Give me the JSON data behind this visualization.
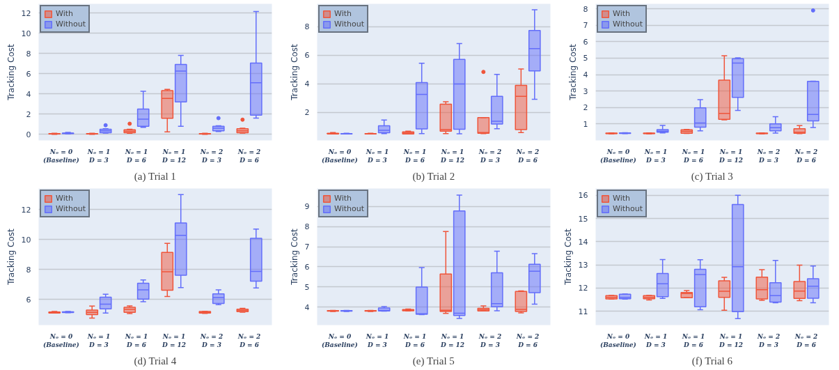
{
  "chart_data": [
    {
      "type": "box",
      "title": "(a) Trial 1",
      "ylabel": "Tracking Cost",
      "categories": [
        "Nₒ = 0\n(Baseline)",
        "Nₒ = 1\nD = 3",
        "Nₒ = 1\nD = 6",
        "Nₒ = 1\nD = 12",
        "Nₒ = 2\nD = 3",
        "Nₒ = 2\nD = 6"
      ],
      "ylim": [
        -0.6,
        12.9
      ],
      "yticks": [
        0,
        2,
        4,
        6,
        8,
        10,
        12
      ],
      "grid": "y",
      "legend": "top left",
      "series": [
        {
          "name": "With",
          "color": "#ef553b",
          "boxes": [
            {
              "low": 0,
              "q1": 0.03,
              "median": 0.05,
              "q3": 0.08,
              "high": 0.1
            },
            {
              "low": 0,
              "q1": 0.03,
              "median": 0.05,
              "q3": 0.08,
              "high": 0.1
            },
            {
              "low": 0.1,
              "q1": 0.15,
              "median": 0.3,
              "q3": 0.45,
              "high": 0.5,
              "outliers": [
                1.05
              ]
            },
            {
              "low": 0.25,
              "q1": 1.58,
              "median": 3.55,
              "q3": 4.33,
              "high": 4.45
            },
            {
              "low": 0,
              "q1": 0.03,
              "median": 0.05,
              "q3": 0.08,
              "high": 0.1
            },
            {
              "low": 0.12,
              "q1": 0.15,
              "median": 0.35,
              "q3": 0.55,
              "high": 0.6,
              "outliers": [
                1.45
              ]
            }
          ]
        },
        {
          "name": "Without",
          "color": "#636efa",
          "boxes": [
            {
              "low": 0.05,
              "q1": 0.07,
              "median": 0.1,
              "q3": 0.13,
              "high": 0.2
            },
            {
              "low": 0.12,
              "q1": 0.15,
              "median": 0.35,
              "q3": 0.5,
              "high": 0.55,
              "outliers": [
                0.9
              ]
            },
            {
              "low": 0.7,
              "q1": 0.8,
              "median": 1.5,
              "q3": 2.5,
              "high": 4.25
            },
            {
              "low": 0.8,
              "q1": 3.2,
              "median": 6.25,
              "q3": 6.9,
              "high": 7.8
            },
            {
              "low": 0.27,
              "q1": 0.35,
              "median": 0.6,
              "q3": 0.8,
              "high": 0.85,
              "outliers": [
                1.6
              ]
            },
            {
              "low": 1.6,
              "q1": 1.9,
              "median": 5.1,
              "q3": 7.05,
              "high": 12.15
            }
          ]
        }
      ]
    },
    {
      "type": "box",
      "title": "(b) Trial 2",
      "ylabel": "Tracking Cost",
      "categories": [
        "Nₒ = 0\n(Baseline)",
        "Nₒ = 1\nD = 3",
        "Nₒ = 1\nD = 6",
        "Nₒ = 1\nD = 12",
        "Nₒ = 2\nD = 3",
        "Nₒ = 2\nD = 6"
      ],
      "ylim": [
        0.05,
        9.6
      ],
      "yticks": [
        2,
        4,
        6,
        8
      ],
      "grid": "y",
      "legend": "top left",
      "series": [
        {
          "name": "With",
          "color": "#ef553b",
          "boxes": [
            {
              "low": 0.5,
              "q1": 0.5,
              "median": 0.52,
              "q3": 0.55,
              "high": 0.6
            },
            {
              "low": 0.5,
              "q1": 0.5,
              "median": 0.52,
              "q3": 0.53,
              "high": 0.55
            },
            {
              "low": 0.5,
              "q1": 0.5,
              "median": 0.56,
              "q3": 0.65,
              "high": 0.7
            },
            {
              "low": 0.53,
              "q1": 0.7,
              "median": 0.8,
              "q3": 2.58,
              "high": 2.76
            },
            {
              "low": 0.53,
              "q1": 0.55,
              "median": 0.6,
              "q3": 1.64,
              "high": 1.65,
              "outliers": [
                4.84
              ]
            },
            {
              "low": 0.6,
              "q1": 0.8,
              "median": 3.13,
              "q3": 3.9,
              "high": 5.05
            }
          ]
        },
        {
          "name": "Without",
          "color": "#636efa",
          "boxes": [
            {
              "low": 0.5,
              "q1": 0.5,
              "median": 0.52,
              "q3": 0.53,
              "high": 0.55
            },
            {
              "low": 0.53,
              "q1": 0.58,
              "median": 0.76,
              "q3": 1.07,
              "high": 1.48
            },
            {
              "low": 0.53,
              "q1": 0.85,
              "median": 3.27,
              "q3": 4.1,
              "high": 5.45
            },
            {
              "low": 0.51,
              "q1": 0.83,
              "median": 4.0,
              "q3": 5.72,
              "high": 6.82
            },
            {
              "low": 0.87,
              "q1": 1.19,
              "median": 1.39,
              "q3": 3.13,
              "high": 4.67
            },
            {
              "low": 2.93,
              "q1": 4.91,
              "median": 6.47,
              "q3": 7.74,
              "high": 9.19
            }
          ]
        }
      ]
    },
    {
      "type": "box",
      "title": "(c) Trial 3",
      "ylabel": "Tracking Cost",
      "categories": [
        "Nₒ = 0\n(Baseline)",
        "Nₒ = 1\nD = 3",
        "Nₒ = 1\nD = 6",
        "Nₒ = 1\nD = 12",
        "Nₒ = 2\nD = 3",
        "Nₒ = 2\nD = 6"
      ],
      "ylim": [
        0,
        8.3
      ],
      "yticks": [
        1,
        2,
        3,
        4,
        5,
        6,
        7,
        8
      ],
      "grid": "y",
      "legend": "top left",
      "series": [
        {
          "name": "With",
          "color": "#ef553b",
          "boxes": [
            {
              "low": 0.4,
              "q1": 0.41,
              "median": 0.42,
              "q3": 0.44,
              "high": 0.46
            },
            {
              "low": 0.4,
              "q1": 0.41,
              "median": 0.42,
              "q3": 0.44,
              "high": 0.46
            },
            {
              "low": 0.42,
              "q1": 0.43,
              "median": 0.55,
              "q3": 0.65,
              "high": 0.67
            },
            {
              "low": 1.25,
              "q1": 1.28,
              "median": 1.64,
              "q3": 3.66,
              "high": 5.15
            },
            {
              "low": 0.4,
              "q1": 0.41,
              "median": 0.42,
              "q3": 0.44,
              "high": 0.46
            },
            {
              "low": 0.41,
              "q1": 0.43,
              "median": 0.5,
              "q3": 0.71,
              "high": 0.9
            }
          ]
        },
        {
          "name": "Without",
          "color": "#636efa",
          "boxes": [
            {
              "low": 0.41,
              "q1": 0.42,
              "median": 0.43,
              "q3": 0.45,
              "high": 0.47
            },
            {
              "low": 0.46,
              "q1": 0.5,
              "median": 0.56,
              "q3": 0.66,
              "high": 0.91
            },
            {
              "low": 0.58,
              "q1": 0.8,
              "median": 1.06,
              "q3": 1.98,
              "high": 2.48
            },
            {
              "low": 1.82,
              "q1": 2.62,
              "median": 4.7,
              "q3": 4.96,
              "high": 5.02
            },
            {
              "low": 0.44,
              "q1": 0.58,
              "median": 0.77,
              "q3": 1.01,
              "high": 1.44
            },
            {
              "low": 0.78,
              "q1": 1.19,
              "median": 1.58,
              "q3": 3.59,
              "high": 3.6,
              "outliers": [
                7.9
              ]
            }
          ]
        }
      ]
    },
    {
      "type": "box",
      "title": "(d) Trial 4",
      "ylabel": "Tracking Cost",
      "categories": [
        "Nₒ = 0\n(Baseline)",
        "Nₒ = 1\nD = 3",
        "Nₒ = 1\nD = 6",
        "Nₒ = 1\nD = 12",
        "Nₒ = 2\nD = 3",
        "Nₒ = 2\nD = 6"
      ],
      "ylim": [
        4.3,
        13.4
      ],
      "yticks": [
        6,
        8,
        10,
        12
      ],
      "grid": "y",
      "legend": "top left",
      "series": [
        {
          "name": "With",
          "color": "#ef553b",
          "boxes": [
            {
              "low": 5.1,
              "q1": 5.1,
              "median": 5.13,
              "q3": 5.17,
              "high": 5.2
            },
            {
              "low": 4.77,
              "q1": 5.0,
              "median": 5.15,
              "q3": 5.3,
              "high": 5.56
            },
            {
              "low": 5.07,
              "q1": 5.15,
              "median": 5.35,
              "q3": 5.48,
              "high": 5.58
            },
            {
              "low": 6.2,
              "q1": 6.62,
              "median": 7.85,
              "q3": 9.14,
              "high": 9.74
            },
            {
              "low": 5.08,
              "q1": 5.1,
              "median": 5.13,
              "q3": 5.2,
              "high": 5.22
            },
            {
              "low": 5.16,
              "q1": 5.19,
              "median": 5.27,
              "q3": 5.36,
              "high": 5.42
            }
          ]
        },
        {
          "name": "Without",
          "color": "#636efa",
          "boxes": [
            {
              "low": 5.12,
              "q1": 5.14,
              "median": 5.16,
              "q3": 5.18,
              "high": 5.2
            },
            {
              "low": 5.1,
              "q1": 5.38,
              "median": 5.69,
              "q3": 6.16,
              "high": 6.36
            },
            {
              "low": 5.85,
              "q1": 6.03,
              "median": 6.65,
              "q3": 7.08,
              "high": 7.31
            },
            {
              "low": 6.8,
              "q1": 7.62,
              "median": 10.28,
              "q3": 11.1,
              "high": 12.99
            },
            {
              "low": 5.66,
              "q1": 5.74,
              "median": 6.13,
              "q3": 6.38,
              "high": 6.64
            },
            {
              "low": 6.77,
              "q1": 7.23,
              "median": 7.88,
              "q3": 10.08,
              "high": 10.69
            }
          ]
        }
      ]
    },
    {
      "type": "box",
      "title": "(e) Trial 5",
      "ylabel": "Tracking Cost",
      "categories": [
        "Nₒ = 0\n(Baseline)",
        "Nₒ = 1\nD = 3",
        "Nₒ = 1\nD = 6",
        "Nₒ = 1\nD = 12",
        "Nₒ = 2\nD = 3",
        "Nₒ = 2\nD = 6"
      ],
      "ylim": [
        3.1,
        9.9
      ],
      "yticks": [
        4,
        5,
        6,
        7,
        8,
        9
      ],
      "grid": "y",
      "legend": "top left",
      "series": [
        {
          "name": "With",
          "color": "#ef553b",
          "boxes": [
            {
              "low": 3.78,
              "q1": 3.79,
              "median": 3.8,
              "q3": 3.82,
              "high": 3.83
            },
            {
              "low": 3.78,
              "q1": 3.79,
              "median": 3.8,
              "q3": 3.82,
              "high": 3.83
            },
            {
              "low": 3.8,
              "q1": 3.81,
              "median": 3.84,
              "q3": 3.87,
              "high": 3.9
            },
            {
              "low": 3.68,
              "q1": 3.78,
              "median": 3.84,
              "q3": 5.64,
              "high": 7.76
            },
            {
              "low": 3.8,
              "q1": 3.8,
              "median": 3.86,
              "q3": 3.93,
              "high": 4.05
            },
            {
              "low": 3.71,
              "q1": 3.78,
              "median": 3.88,
              "q3": 4.77,
              "high": 4.8
            }
          ]
        },
        {
          "name": "Without",
          "color": "#636efa",
          "boxes": [
            {
              "low": 3.78,
              "q1": 3.79,
              "median": 3.8,
              "q3": 3.82,
              "high": 3.83
            },
            {
              "low": 3.79,
              "q1": 3.8,
              "median": 3.83,
              "q3": 3.95,
              "high": 4.02
            },
            {
              "low": 3.62,
              "q1": 3.64,
              "median": 3.66,
              "q3": 4.99,
              "high": 5.96
            },
            {
              "low": 3.43,
              "q1": 3.58,
              "median": 3.69,
              "q3": 8.78,
              "high": 9.57
            },
            {
              "low": 3.81,
              "q1": 4.01,
              "median": 4.17,
              "q3": 5.7,
              "high": 6.78
            },
            {
              "low": 4.14,
              "q1": 4.71,
              "median": 5.78,
              "q3": 6.13,
              "high": 6.66
            }
          ]
        }
      ]
    },
    {
      "type": "box",
      "title": "(f) Trial 6",
      "ylabel": "Tracking Cost",
      "categories": [
        "Nₒ = 0\n(Baseline)",
        "Nₒ = 1\nD = 3",
        "Nₒ = 1\nD = 6",
        "Nₒ = 1\nD = 12",
        "Nₒ = 2\nD = 3",
        "Nₒ = 2\nD = 6"
      ],
      "ylim": [
        10.4,
        16.3
      ],
      "yticks": [
        11,
        12,
        13,
        14,
        15,
        16
      ],
      "grid": "y",
      "legend": "top left",
      "series": [
        {
          "name": "With",
          "color": "#ef553b",
          "boxes": [
            {
              "low": 11.52,
              "q1": 11.53,
              "median": 11.6,
              "q3": 11.67,
              "high": 11.68
            },
            {
              "low": 11.48,
              "q1": 11.54,
              "median": 11.6,
              "q3": 11.67,
              "high": 11.68
            },
            {
              "low": 11.58,
              "q1": 11.58,
              "median": 11.76,
              "q3": 11.81,
              "high": 11.89
            },
            {
              "low": 11.04,
              "q1": 11.6,
              "median": 11.86,
              "q3": 12.31,
              "high": 12.46
            },
            {
              "low": 11.47,
              "q1": 11.53,
              "median": 11.93,
              "q3": 12.47,
              "high": 12.79
            },
            {
              "low": 11.45,
              "q1": 11.55,
              "median": 11.87,
              "q3": 12.28,
              "high": 12.99
            }
          ]
        },
        {
          "name": "Without",
          "color": "#636efa",
          "boxes": [
            {
              "low": 11.52,
              "q1": 11.54,
              "median": 11.6,
              "q3": 11.73,
              "high": 11.74
            },
            {
              "low": 11.55,
              "q1": 11.63,
              "median": 12.18,
              "q3": 12.63,
              "high": 13.23
            },
            {
              "low": 11.06,
              "q1": 11.19,
              "median": 12.58,
              "q3": 12.81,
              "high": 13.22
            },
            {
              "low": 10.68,
              "q1": 10.98,
              "median": 12.92,
              "q3": 15.61,
              "high": 16.01
            },
            {
              "low": 11.36,
              "q1": 11.39,
              "median": 11.67,
              "q3": 12.23,
              "high": 13.19
            },
            {
              "low": 11.36,
              "q1": 11.56,
              "median": 12.08,
              "q3": 12.4,
              "high": 12.95
            }
          ]
        }
      ]
    }
  ]
}
